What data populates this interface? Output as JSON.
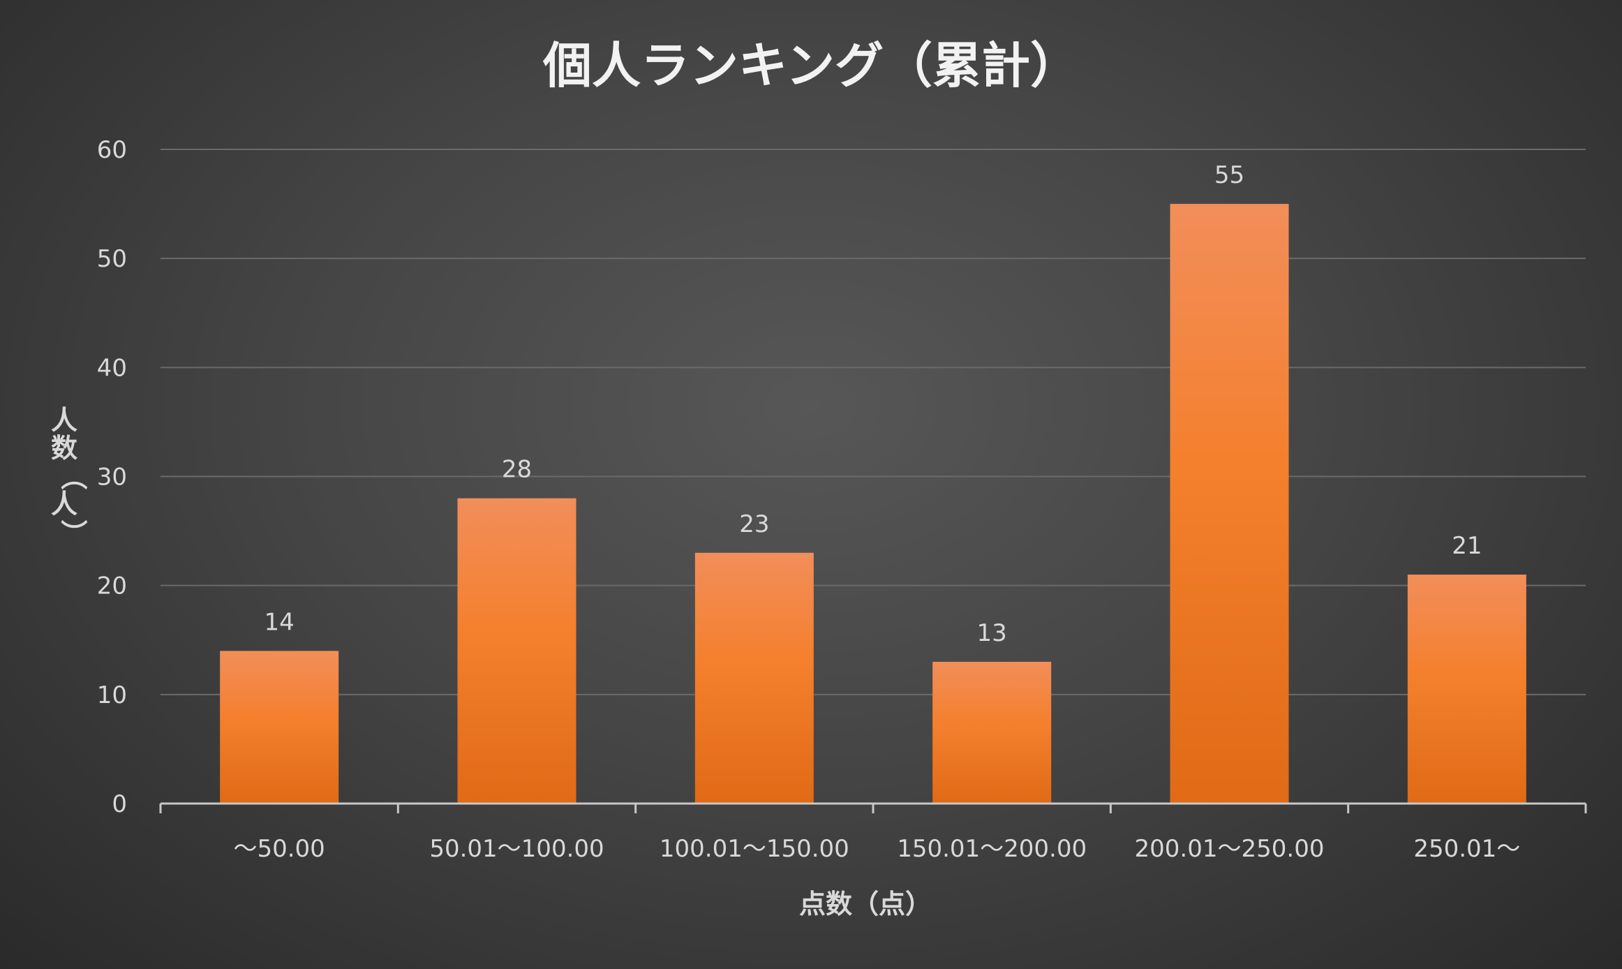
{
  "chart_data": {
    "type": "bar",
    "title": "個人ランキング（累計）",
    "xlabel": "点数（点）",
    "ylabel": "人数（人）",
    "categories": [
      "～50.00",
      "50.01～100.00",
      "100.01～150.00",
      "150.01～200.00",
      "200.01～250.00",
      "250.01～"
    ],
    "values": [
      14,
      28,
      23,
      13,
      55,
      21
    ],
    "ylim": [
      0,
      60
    ],
    "yticks": [
      0,
      10,
      20,
      30,
      40,
      50,
      60
    ],
    "grid": true,
    "legend": "none",
    "data_labels": true,
    "colors": {
      "bar_top": "#f28e5a",
      "bar_mid": "#f47f2c",
      "bar_bottom": "#e06a16",
      "background": "#4a4a4a"
    }
  }
}
